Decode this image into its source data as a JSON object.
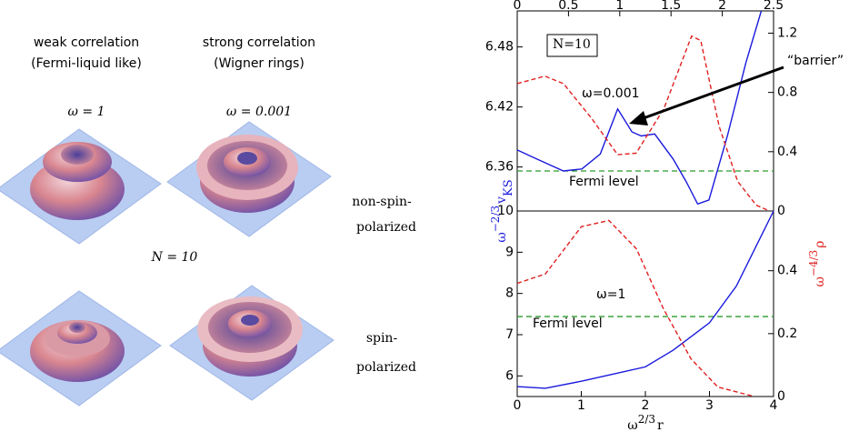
{
  "illustration": {
    "columns": [
      {
        "title": "weak correlation",
        "subtitle": "(Fermi-liquid like)",
        "omega": "ω = 1"
      },
      {
        "title": "strong correlation",
        "subtitle": "(Wigner rings)",
        "omega": "ω = 0.001"
      }
    ],
    "rows": [
      {
        "line1": "non-spin-",
        "line2": "polarized"
      },
      {
        "line1": "spin-",
        "line2": "polarized"
      }
    ],
    "center_label": "N = 10"
  },
  "chart_data": [
    {
      "type": "line",
      "xlim": [
        0,
        2.5
      ],
      "xticks": [
        0,
        0.5,
        1,
        1.5,
        2,
        2.5
      ],
      "ylim": [
        6.316,
        6.516
      ],
      "yticks": [
        6.36,
        6.42,
        6.48
      ],
      "y2lim": [
        0,
        1.35
      ],
      "y2ticks": [
        0,
        0.4,
        0.8,
        1.2
      ],
      "annotations": [
        "N=10",
        "ω=0.001",
        "“barrier”"
      ],
      "hlines": [
        {
          "value": 6.356,
          "color": "#2a9a2a",
          "label": "Fermi level"
        }
      ],
      "series": [
        {
          "color": "#1a1adc",
          "linestyle": "solid",
          "x": [
            0,
            0.19,
            0.45,
            0.63,
            0.81,
            0.98,
            1.12,
            1.21,
            1.34,
            1.52,
            1.65,
            1.76,
            1.87,
            2.05,
            2.23,
            2.38
          ],
          "values": [
            6.377,
            6.368,
            6.356,
            6.358,
            6.373,
            6.418,
            6.395,
            6.391,
            6.393,
            6.368,
            6.345,
            6.323,
            6.327,
            6.391,
            6.464,
            6.516
          ]
        },
        {
          "color": "#e02020",
          "linestyle": "dashed",
          "axis": "y2",
          "x": [
            0,
            0.27,
            0.45,
            0.72,
            0.98,
            1.16,
            1.43,
            1.7,
            1.79,
            1.97,
            2.15,
            2.33,
            2.46
          ],
          "values": [
            0.86,
            0.91,
            0.86,
            0.63,
            0.38,
            0.39,
            0.69,
            1.18,
            1.15,
            0.57,
            0.2,
            0.04,
            0
          ]
        }
      ]
    },
    {
      "type": "line",
      "xlim": [
        0,
        4
      ],
      "xticks": [
        0,
        1,
        2,
        3,
        4
      ],
      "ylim": [
        5.5,
        10
      ],
      "yticks": [
        6,
        7,
        8,
        9,
        10
      ],
      "y2lim": [
        0,
        0.59
      ],
      "y2ticks": [
        0,
        0.2,
        0.4
      ],
      "xlabel": {
        "base": "ω",
        "sup": "2/3",
        "var": "r"
      },
      "ylabel": {
        "base": "ω",
        "sup": "−2/3",
        "var": "v",
        "sub": "KS"
      },
      "y2label": {
        "base": "ω",
        "sup": "−4/3",
        "var": "ρ"
      },
      "annotations": [
        "ω=1"
      ],
      "hlines": [
        {
          "value": 7.44,
          "color": "#2a9a2a",
          "label": "Fermi level"
        }
      ],
      "series": [
        {
          "color": "#1a1adc",
          "linestyle": "solid",
          "x": [
            0,
            0.44,
            1,
            1.57,
            2,
            2.43,
            3,
            3.42,
            4
          ],
          "values": [
            5.74,
            5.7,
            5.87,
            6.07,
            6.22,
            6.62,
            7.29,
            8.18,
            10
          ]
        },
        {
          "color": "#e02020",
          "linestyle": "dashed",
          "axis": "y2",
          "x": [
            0,
            0.44,
            1,
            1.43,
            1.86,
            2.28,
            2.71,
            3.13,
            3.7
          ],
          "values": [
            0.36,
            0.39,
            0.54,
            0.56,
            0.47,
            0.28,
            0.12,
            0.03,
            0
          ]
        }
      ]
    }
  ]
}
